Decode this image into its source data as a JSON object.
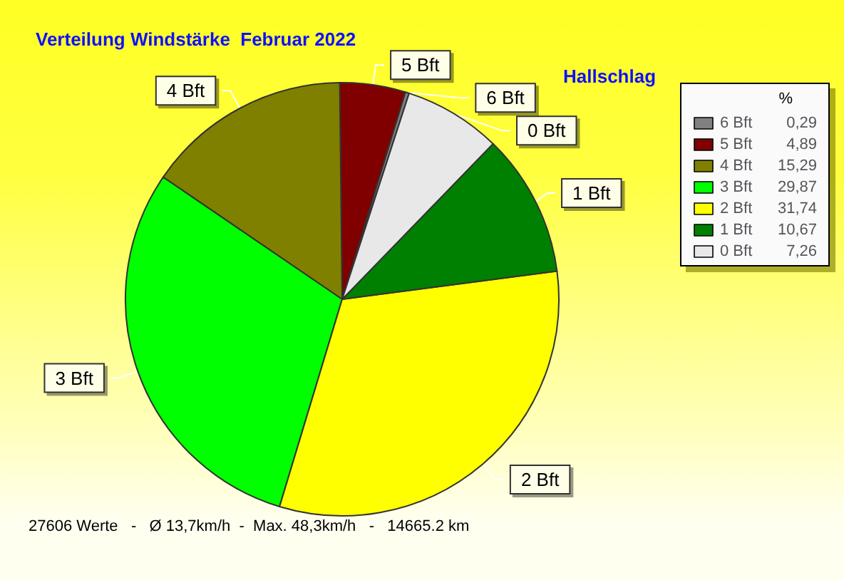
{
  "chart_data": {
    "type": "pie",
    "title": "Verteilung Windstärke  Februar 2022",
    "subtitle": "Hallschlag",
    "legend_title": "%",
    "legend": "right",
    "categories": [
      "6 Bft",
      "5 Bft",
      "4 Bft",
      "3 Bft",
      "2 Bft",
      "1 Bft",
      "0 Bft"
    ],
    "values": [
      0.29,
      4.89,
      15.29,
      29.87,
      31.74,
      10.67,
      7.26
    ],
    "value_labels": [
      "0,29",
      "4,89",
      "15,29",
      "29,87",
      "31,74",
      "10,67",
      "7,26"
    ],
    "colors": [
      "#808080",
      "#800000",
      "#808000",
      "#00ff00",
      "#ffff00",
      "#008000",
      "#e8e8e8"
    ],
    "annotations": [
      "27606 Werte   -   Ø 13,7km/h  -  Max. 48,3km/h   -   14665.2 km"
    ]
  }
}
